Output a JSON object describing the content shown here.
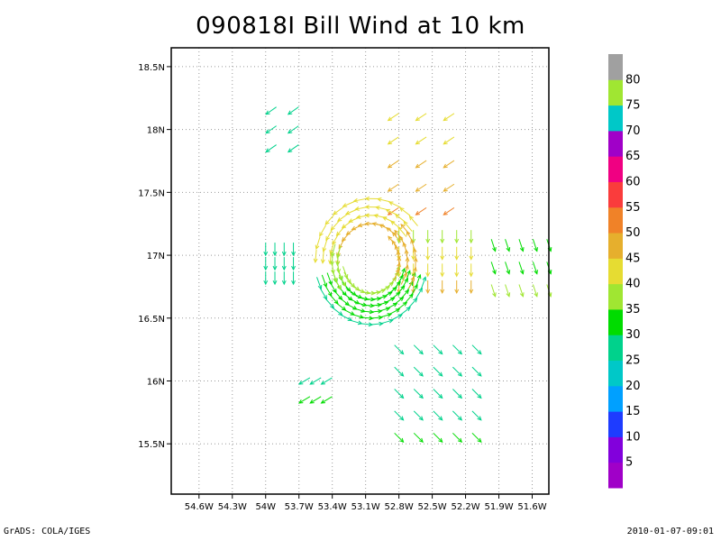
{
  "title": "090818I Bill Wind at 10 km",
  "footer": {
    "left": "GrADS: COLA/IGES",
    "right": "2010-01-07-09:01"
  },
  "chart_data": {
    "type": "vector-field",
    "title": "090818I Bill Wind at 10 km",
    "xlabel": "",
    "ylabel": "",
    "xlim": [
      -54.85,
      -51.45
    ],
    "ylim": [
      15.1,
      18.65
    ],
    "grid": true,
    "x_ticks": [
      {
        "value": -54.6,
        "label": "54.6W"
      },
      {
        "value": -54.3,
        "label": "54.3W"
      },
      {
        "value": -54.0,
        "label": "54W"
      },
      {
        "value": -53.7,
        "label": "53.7W"
      },
      {
        "value": -53.4,
        "label": "53.4W"
      },
      {
        "value": -53.1,
        "label": "53.1W"
      },
      {
        "value": -52.8,
        "label": "52.8W"
      },
      {
        "value": -52.5,
        "label": "52.5W"
      },
      {
        "value": -52.2,
        "label": "52.2W"
      },
      {
        "value": -51.9,
        "label": "51.9W"
      },
      {
        "value": -51.6,
        "label": "51.6W"
      }
    ],
    "y_ticks": [
      {
        "value": 15.5,
        "label": "15.5N"
      },
      {
        "value": 16.0,
        "label": "16N"
      },
      {
        "value": 16.5,
        "label": "16.5N"
      },
      {
        "value": 17.0,
        "label": "17N"
      },
      {
        "value": 17.5,
        "label": "17.5N"
      },
      {
        "value": 18.0,
        "label": "18N"
      },
      {
        "value": 18.5,
        "label": "18.5N"
      }
    ],
    "vortex_center": {
      "lon": -53.05,
      "lat": 16.95
    },
    "colorbar": {
      "levels": [
        {
          "label": "",
          "color": "#a000c8"
        },
        {
          "label": "5",
          "color": "#8200dc"
        },
        {
          "label": "10",
          "color": "#1e3cff"
        },
        {
          "label": "15",
          "color": "#00a0ff"
        },
        {
          "label": "20",
          "color": "#00c8c8"
        },
        {
          "label": "25",
          "color": "#00d28c"
        },
        {
          "label": "30",
          "color": "#00dc00"
        },
        {
          "label": "35",
          "color": "#a0e632"
        },
        {
          "label": "40",
          "color": "#e6dc32"
        },
        {
          "label": "45",
          "color": "#e6af2d"
        },
        {
          "label": "50",
          "color": "#f08228"
        },
        {
          "label": "55",
          "color": "#fa3c3c"
        },
        {
          "label": "60",
          "color": "#f00082"
        },
        {
          "label": "65",
          "color": "#a000c8"
        },
        {
          "label": "70",
          "color": "#00c8c8"
        },
        {
          "label": "75",
          "color": "#a0e632"
        },
        {
          "label": "80",
          "color": "#a0a0a0"
        }
      ]
    },
    "segments": [
      {
        "name": "NE-north",
        "lon0": -52.85,
        "lat0": 17.35,
        "lon1": -52.35,
        "lat1": 18.1,
        "rows": 5,
        "cols": 3,
        "u": -9,
        "v": -6,
        "speed_start": 45,
        "speed_end": 36
      },
      {
        "name": "E-mid",
        "lon0": -52.8,
        "lat0": 16.75,
        "lon1": -52.15,
        "lat1": 17.15,
        "rows": 4,
        "cols": 6,
        "u": 0,
        "v": -1,
        "speed_start": 42,
        "speed_end": 32
      },
      {
        "name": "E-far",
        "lon0": -51.95,
        "lat0": 16.72,
        "lon1": -51.45,
        "lat1": 17.08,
        "rows": 3,
        "cols": 5,
        "u": 1,
        "v": -3,
        "speed_start": 30,
        "speed_end": 28
      },
      {
        "name": "SE",
        "lon0": -52.8,
        "lat0": 15.55,
        "lon1": -52.1,
        "lat1": 16.25,
        "rows": 5,
        "cols": 5,
        "u": 1,
        "v": -1,
        "speed_start": 25,
        "speed_end": 24
      },
      {
        "name": "SW-small",
        "lon0": -53.65,
        "lat0": 15.85,
        "lon1": -53.45,
        "lat1": 16.0,
        "rows": 2,
        "cols": 3,
        "u": -1,
        "v": -0.6,
        "speed_start": 25,
        "speed_end": 24
      },
      {
        "name": "W-far",
        "lon0": -54.0,
        "lat0": 16.82,
        "lon1": -53.75,
        "lat1": 17.05,
        "rows": 3,
        "cols": 4,
        "u": 0,
        "v": -1,
        "speed_start": 24,
        "speed_end": 24
      },
      {
        "name": "NW-far",
        "lon0": -53.95,
        "lat0": 17.85,
        "lon1": -53.75,
        "lat1": 18.15,
        "rows": 3,
        "cols": 2,
        "u": -1,
        "v": -0.7,
        "speed_start": 24,
        "speed_end": 24
      }
    ],
    "arcs": [
      {
        "name": "south-ring",
        "r_min": 0.25,
        "r_max": 0.5,
        "a0": 200,
        "a1": 340,
        "rings": 6,
        "steps": 14,
        "speed_inner": 30,
        "speed_outer": 24
      },
      {
        "name": "north-ring",
        "r_min": 0.3,
        "r_max": 0.5,
        "a0": 40,
        "a1": 175,
        "rings": 4,
        "steps": 12,
        "speed_inner": 40,
        "speed_outer": 36
      },
      {
        "name": "east-ring",
        "r_min": 0.25,
        "r_max": 0.4,
        "a0": -25,
        "a1": 40,
        "rings": 3,
        "steps": 7,
        "speed_inner": 44,
        "speed_outer": 42
      },
      {
        "name": "west-ring",
        "r_min": 0.3,
        "r_max": 0.35,
        "a0": 165,
        "a1": 210,
        "rings": 2,
        "steps": 5,
        "speed_inner": 34,
        "speed_outer": 32
      }
    ]
  }
}
